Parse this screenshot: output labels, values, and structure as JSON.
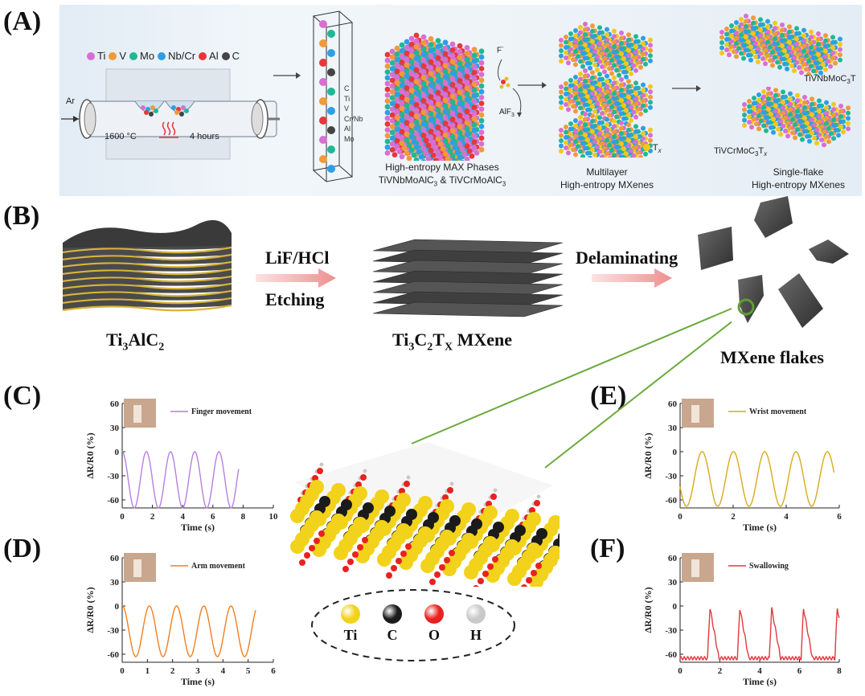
{
  "panels": {
    "A": "(A)",
    "B": "(B)",
    "C": "(C)",
    "D": "(D)",
    "E": "(E)",
    "F": "(F)"
  },
  "panelA": {
    "elements": [
      {
        "symbol": "Ti",
        "color": "#d86fd2"
      },
      {
        "symbol": "V",
        "color": "#f09a3a"
      },
      {
        "symbol": "Mo",
        "color": "#20b894"
      },
      {
        "symbol": "Nb/Cr",
        "color": "#2e9ee6"
      },
      {
        "symbol": "Al",
        "color": "#e5383b"
      },
      {
        "symbol": "C",
        "color": "#444444"
      }
    ],
    "gas": "Ar",
    "temperature": "1600 °C",
    "duration": "4 hours",
    "unitcell_labels": [
      "C",
      "Ti",
      "V",
      "Cr/Nb",
      "Al",
      "Mo"
    ],
    "fluoride": "F",
    "alf3": "AlF",
    "alf3_sub": "3",
    "tx": "T",
    "tx_sub": "x",
    "max_caption_1": "High-entropy MAX Phases",
    "max_caption_2a": "TiVNbMoAlC",
    "max_caption_2b": " & TiVCrMoAlC",
    "sub3": "3",
    "multi_caption_1": "Multilayer",
    "multi_caption_2": "High-entropy MXenes",
    "flake_top_label": "TiVNbMoC",
    "flake_top_tail": "T",
    "flake_bottom_label": "TiVCrMoC",
    "flake_bottom_tail": "T",
    "single_caption_1": "Single-flake",
    "single_caption_2": "High-entropy MXenes"
  },
  "panelB": {
    "material1": "Ti",
    "material1_b": "AlC",
    "sub3": "3",
    "sub2": "2",
    "etch_top": "LiF/HCl",
    "etch_bottom": "Etching",
    "material2_a": "Ti",
    "material2_b": "C",
    "material2_c": "T",
    "sub_x": "X",
    "material2_tail": " MXene",
    "step2": "Delaminating",
    "material3": "MXene flakes"
  },
  "center": {
    "legend": [
      {
        "symbol": "Ti",
        "color": "#f2d21a"
      },
      {
        "symbol": "C",
        "color": "#1b1b1b"
      },
      {
        "symbol": "O",
        "color": "#e8221f"
      },
      {
        "symbol": "H",
        "color": "#c9c9c9"
      }
    ]
  },
  "colors": {
    "finger": "#b77fe0",
    "arm": "#f07f1e",
    "wrist": "#d9aa18",
    "swallow": "#e2383f",
    "connector": "#6aaa3a"
  },
  "chart_data": [
    {
      "panel": "C",
      "type": "line",
      "series": [
        {
          "name": "Finger movement",
          "color": "#b77fe0"
        }
      ],
      "xlabel": "Time (s)",
      "ylabel": "ΔR/R0 (%)",
      "xlim": [
        0,
        10
      ],
      "ylim": [
        -70,
        60
      ],
      "xticks": [
        0,
        2,
        4,
        6,
        8,
        10
      ],
      "yticks": [
        60,
        30,
        0,
        -30,
        -60
      ],
      "signal": {
        "x_start": 0,
        "x_end": 7.7,
        "period": 1.6,
        "phase": 0.0,
        "high": 0,
        "low": -70
      }
    },
    {
      "panel": "D",
      "type": "line",
      "series": [
        {
          "name": "Arm movement",
          "color": "#f07f1e"
        }
      ],
      "xlabel": "Time (s)",
      "ylabel": "ΔR/R0 (%)",
      "xlim": [
        0,
        6
      ],
      "ylim": [
        -70,
        60
      ],
      "xticks": [
        0,
        1,
        2,
        3,
        4,
        5,
        6
      ],
      "yticks": [
        60,
        30,
        0,
        -30,
        -60
      ],
      "signal": {
        "x_start": 0,
        "x_end": 5.3,
        "period": 1.08,
        "phase": 0.0,
        "high": 0,
        "low": -63
      }
    },
    {
      "panel": "E",
      "type": "line",
      "series": [
        {
          "name": "Wrist movement",
          "color": "#d9aa18"
        }
      ],
      "xlabel": "Time (s)",
      "ylabel": "ΔR/R0 (%)",
      "xlim": [
        0,
        6
      ],
      "ylim": [
        -70,
        60
      ],
      "xticks": [
        0,
        2,
        4,
        6
      ],
      "yticks": [
        60,
        30,
        0,
        -30,
        -60
      ],
      "signal": {
        "x_start": 0,
        "x_end": 5.8,
        "period": 1.18,
        "phase": 0.35,
        "high": 0,
        "low": -68
      }
    },
    {
      "panel": "F",
      "type": "line",
      "series": [
        {
          "name": "Swallowing",
          "color": "#e2383f"
        }
      ],
      "xlabel": "Time (s)",
      "ylabel": "ΔR/R0 (%)",
      "xlim": [
        0,
        8
      ],
      "ylim": [
        -70,
        60
      ],
      "xticks": [
        0,
        2,
        4,
        6,
        8
      ],
      "yticks": [
        60,
        30,
        0,
        -30,
        -60
      ],
      "signal": {
        "x_start": 0,
        "x_end": 8,
        "spikes": [
          1.5,
          3.0,
          4.6,
          6.2,
          7.9
        ],
        "high": -2,
        "low": -65
      }
    }
  ]
}
